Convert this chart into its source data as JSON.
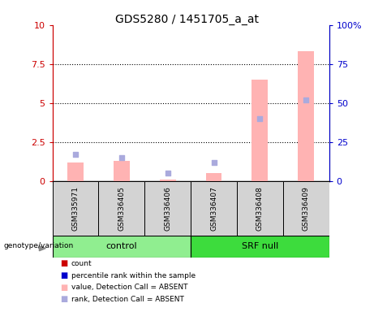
{
  "title": "GDS5280 / 1451705_a_at",
  "samples": [
    "GSM335971",
    "GSM336405",
    "GSM336406",
    "GSM336407",
    "GSM336408",
    "GSM336409"
  ],
  "pink_bar_values": [
    1.2,
    1.3,
    0.08,
    0.5,
    6.5,
    8.3
  ],
  "blue_square_values": [
    17,
    15,
    5,
    12,
    40,
    52
  ],
  "groups": [
    {
      "label": "control",
      "indices": [
        0,
        1,
        2
      ],
      "color": "#90ee90"
    },
    {
      "label": "SRF null",
      "indices": [
        3,
        4,
        5
      ],
      "color": "#3ddc3d"
    }
  ],
  "ylim_left": [
    0,
    10
  ],
  "ylim_right": [
    0,
    100
  ],
  "yticks_left": [
    0,
    2.5,
    5,
    7.5,
    10
  ],
  "ytick_labels_left": [
    "0",
    "2.5",
    "5",
    "7.5",
    "10"
  ],
  "yticks_right": [
    0,
    25,
    50,
    75,
    100
  ],
  "ytick_labels_right": [
    "0",
    "25",
    "50",
    "75",
    "100%"
  ],
  "left_axis_color": "#cc0000",
  "right_axis_color": "#0000cc",
  "pink_bar_color": "#ffb3b3",
  "blue_square_color": "#aaaadd",
  "legend_items": [
    {
      "label": "count",
      "color": "#cc0000"
    },
    {
      "label": "percentile rank within the sample",
      "color": "#0000cc"
    },
    {
      "label": "value, Detection Call = ABSENT",
      "color": "#ffb3b3"
    },
    {
      "label": "rank, Detection Call = ABSENT",
      "color": "#aaaadd"
    }
  ],
  "group_label": "genotype/variation",
  "bar_width": 0.35
}
